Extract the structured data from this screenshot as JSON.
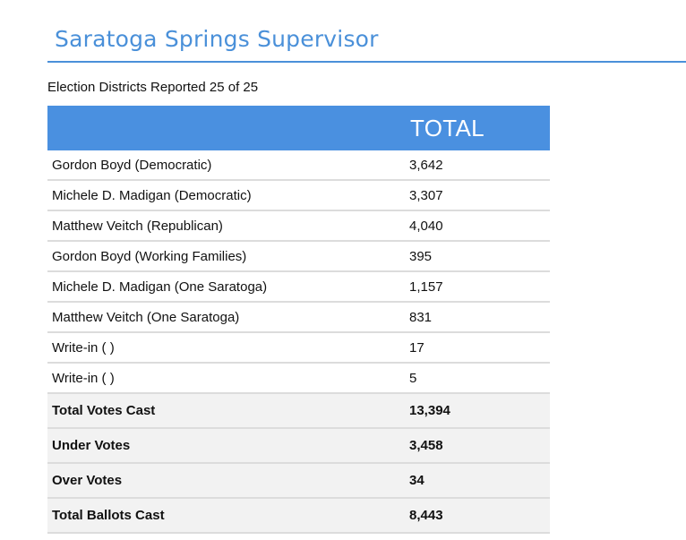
{
  "page": {
    "title": "Saratoga Springs Supervisor",
    "reported": "Election Districts Reported 25 of 25",
    "accent_color": "#4a90d9"
  },
  "table": {
    "header": "TOTAL",
    "candidates": [
      {
        "name": "Gordon Boyd (Democratic)",
        "votes": "3,642"
      },
      {
        "name": "Michele D. Madigan (Democratic)",
        "votes": "3,307"
      },
      {
        "name": "Matthew Veitch (Republican)",
        "votes": "4,040"
      },
      {
        "name": "Gordon Boyd (Working Families)",
        "votes": "395"
      },
      {
        "name": "Michele D. Madigan (One Saratoga)",
        "votes": "1,157"
      },
      {
        "name": "Matthew Veitch (One Saratoga)",
        "votes": "831"
      },
      {
        "name": "Write-in ( )",
        "votes": "17"
      },
      {
        "name": "Write-in ( )",
        "votes": "5"
      }
    ],
    "totals": [
      {
        "name": "Total Votes Cast",
        "votes": "13,394"
      },
      {
        "name": "Under Votes",
        "votes": "3,458"
      },
      {
        "name": "Over Votes",
        "votes": "34"
      },
      {
        "name": "Total Ballots Cast",
        "votes": "8,443"
      }
    ]
  }
}
